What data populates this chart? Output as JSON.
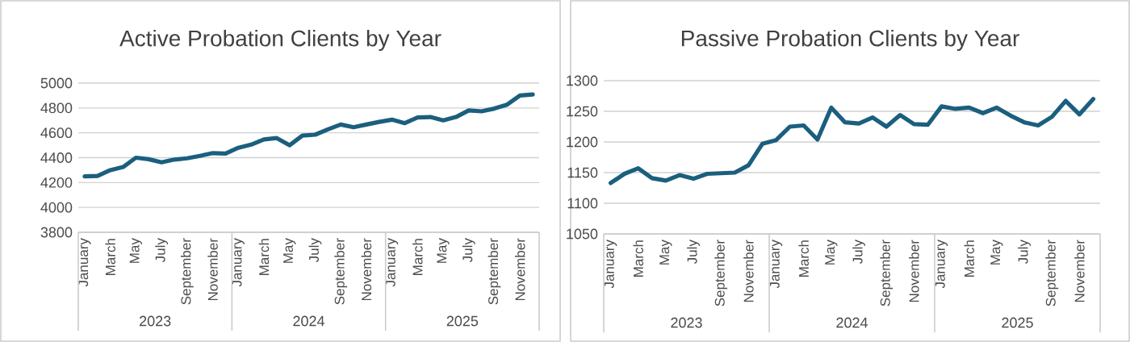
{
  "chart_data": [
    {
      "type": "line",
      "title": "Active Probation Clients by Year",
      "categories": [
        "January",
        null,
        "March",
        null,
        "May",
        null,
        "July",
        null,
        "September",
        null,
        "November",
        null,
        "January",
        null,
        "March",
        null,
        "May",
        null,
        "July",
        null,
        "September",
        null,
        "November",
        null,
        "January",
        null,
        "March",
        null,
        "May",
        null,
        "July",
        null,
        "September",
        null,
        "November",
        null
      ],
      "series": [
        {
          "color": "#1b5f7e",
          "values": [
            4250,
            4253,
            4300,
            4325,
            4400,
            4388,
            4363,
            4385,
            4395,
            4415,
            4437,
            4433,
            4480,
            4505,
            4547,
            4558,
            4500,
            4578,
            4585,
            4628,
            4667,
            4645,
            4667,
            4688,
            4706,
            4678,
            4724,
            4727,
            4700,
            4727,
            4780,
            4773,
            4795,
            4827,
            4900,
            4908
          ]
        }
      ],
      "ylim": [
        3800,
        5000
      ],
      "yticks": [
        3800,
        4000,
        4200,
        4400,
        4600,
        4800,
        5000
      ],
      "grid": "y",
      "annotations": [
        "2023",
        "2024",
        "2025"
      ]
    },
    {
      "type": "line",
      "title": "Passive Probation Clients by Year",
      "categories": [
        "January",
        null,
        "March",
        null,
        "May",
        null,
        "July",
        null,
        "September",
        null,
        "November",
        null,
        "January",
        null,
        "March",
        null,
        "May",
        null,
        "July",
        null,
        "September",
        null,
        "November",
        null,
        "January",
        null,
        "March",
        null,
        "May",
        null,
        "July",
        null,
        "September",
        null,
        "November",
        null
      ],
      "series": [
        {
          "color": "#1b5f7e",
          "values": [
            1133,
            1148,
            1157,
            1141,
            1137,
            1146,
            1140,
            1148,
            1149,
            1150,
            1162,
            1197,
            1203,
            1225,
            1227,
            1204,
            1256,
            1232,
            1230,
            1240,
            1225,
            1244,
            1229,
            1228,
            1258,
            1254,
            1256,
            1247,
            1256,
            1243,
            1232,
            1227,
            1241,
            1267,
            1245,
            1270
          ]
        }
      ],
      "ylim": [
        1050,
        1300
      ],
      "yticks": [
        1050,
        1100,
        1150,
        1200,
        1250,
        1300
      ],
      "grid": "y",
      "annotations": [
        "2023",
        "2024",
        "2025"
      ]
    }
  ]
}
